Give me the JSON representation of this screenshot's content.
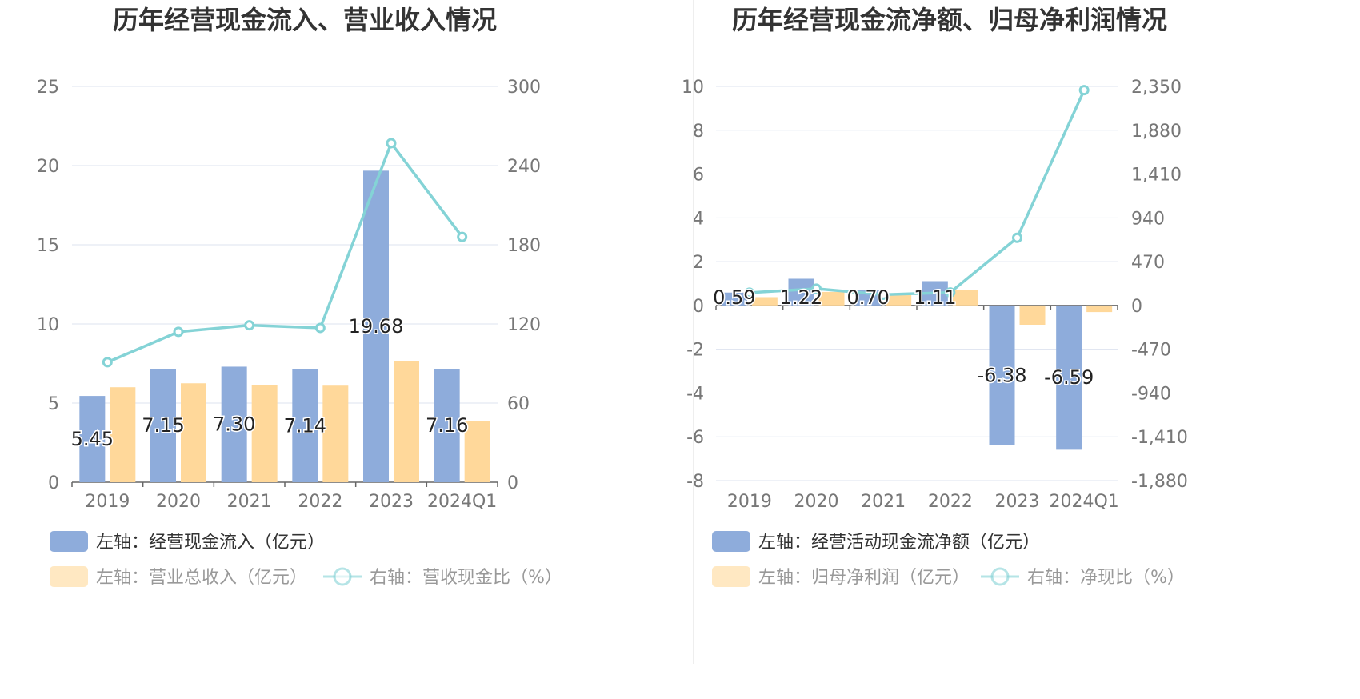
{
  "colors": {
    "bar_primary": "#8eacdb",
    "bar_secondary": "#ffd89a",
    "line": "#84d3d6",
    "grid": "#dde3ef",
    "axis_text": "#777777",
    "title_text": "#333333",
    "legend_text": "#555555"
  },
  "chart_data": [
    {
      "type": "bar",
      "title": "历年经营现金流入、营业收入情况",
      "categories": [
        "2019",
        "2020",
        "2021",
        "2022",
        "2023",
        "2024Q1"
      ],
      "ylim_left": [
        0,
        25
      ],
      "yticks_left": [
        0,
        5,
        10,
        15,
        20,
        25
      ],
      "ylim_right": [
        0,
        300
      ],
      "yticks_right": [
        0,
        60,
        120,
        180,
        240,
        300
      ],
      "grid": true,
      "legend_position": "bottom-left",
      "series": [
        {
          "name": "左轴：经营现金流入（亿元）",
          "axis": "left",
          "kind": "bar",
          "color": "#8eacdb",
          "values": [
            5.45,
            7.15,
            7.3,
            7.14,
            19.68,
            7.16
          ],
          "labels": [
            "5.45",
            "7.15",
            "7.30",
            "7.14",
            "19.68",
            "7.16"
          ]
        },
        {
          "name": "左轴：营业总收入（亿元）",
          "axis": "left",
          "kind": "bar",
          "color": "#ffd89a",
          "values": [
            6.0,
            6.25,
            6.15,
            6.1,
            7.65,
            3.85
          ]
        },
        {
          "name": "右轴：营收现金比（%）",
          "axis": "right",
          "kind": "line",
          "color": "#84d3d6",
          "values": [
            91,
            114,
            119,
            117,
            257,
            186
          ]
        }
      ]
    },
    {
      "type": "bar",
      "title": "历年经营现金流净额、归母净利润情况",
      "categories": [
        "2019",
        "2020",
        "2021",
        "2022",
        "2023",
        "2024Q1"
      ],
      "ylim_left": [
        -8,
        10
      ],
      "yticks_left": [
        -8,
        -6,
        -4,
        -2,
        0,
        2,
        4,
        6,
        8,
        10
      ],
      "ylim_right": [
        -1880,
        2350
      ],
      "yticks_right": [
        "-1,880",
        "-1,410",
        "-940",
        "-470",
        "0",
        "470",
        "940",
        "1,410",
        "1,880",
        "2,350"
      ],
      "grid": true,
      "legend_position": "bottom-left",
      "series": [
        {
          "name": "左轴：经营活动现金流净额（亿元）",
          "axis": "left",
          "kind": "bar",
          "color": "#8eacdb",
          "values": [
            0.59,
            1.22,
            0.7,
            1.11,
            -6.38,
            -6.59
          ],
          "labels": [
            "0.59",
            "1.22",
            "0.70",
            "1.11",
            "-6.38",
            "-6.59"
          ]
        },
        {
          "name": "左轴：归母净利润（亿元）",
          "axis": "left",
          "kind": "bar",
          "color": "#ffd89a",
          "values": [
            0.38,
            0.62,
            0.56,
            0.72,
            -0.88,
            -0.3
          ]
        },
        {
          "name": "右轴：净现比（%）",
          "axis": "right",
          "kind": "line",
          "color": "#84d3d6",
          "values": [
            137,
            180,
            116,
            140,
            726,
            2310
          ]
        }
      ]
    }
  ]
}
